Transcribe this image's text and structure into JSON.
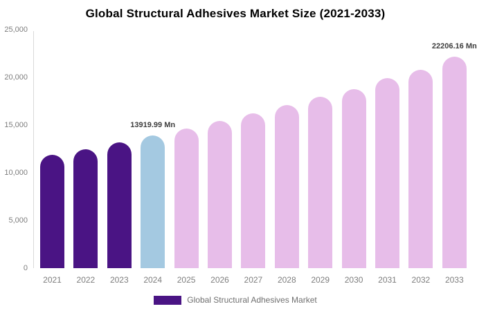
{
  "page": {
    "title": "Global Structural Adhesives Market Size (2021-2033)"
  },
  "chart_data": {
    "type": "bar",
    "title": "Global Structural Adhesives Market Size (2021-2033)",
    "categories": [
      "2021",
      "2022",
      "2023",
      "2024",
      "2025",
      "2026",
      "2027",
      "2028",
      "2029",
      "2030",
      "2031",
      "2032",
      "2033"
    ],
    "values": [
      11880,
      12480,
      13170,
      13919.99,
      14630,
      15400,
      16230,
      17100,
      17950,
      18800,
      19900,
      20790,
      22206.16
    ],
    "periods": [
      "historical",
      "historical",
      "historical",
      "current",
      "forecast",
      "forecast",
      "forecast",
      "forecast",
      "forecast",
      "forecast",
      "forecast",
      "forecast",
      "forecast"
    ],
    "data_labels": [
      {
        "category": "2024",
        "text": "13919.99 Mn"
      },
      {
        "category": "2033",
        "text": "22206.16 Mn"
      }
    ],
    "y_ticks": [
      "25,000",
      "20,000",
      "15,000",
      "10,000",
      "5,000",
      "0"
    ],
    "ylim": [
      0,
      25000
    ],
    "grid": false,
    "xlabel": "",
    "ylabel": "",
    "legend": {
      "position": "bottom",
      "entries": [
        {
          "label": "Global Structural Adhesives Market",
          "color_key": "historical"
        }
      ]
    },
    "colors": {
      "historical": "#4A1484",
      "current": "#A4C9E1",
      "forecast": "#E7BDE9",
      "axis_line": "#D9D9D9",
      "tick_text": "#7D7D7D",
      "data_label_text": "#3D3D3D",
      "legend_text": "#6F6F6F",
      "title_text": "#000000"
    }
  }
}
